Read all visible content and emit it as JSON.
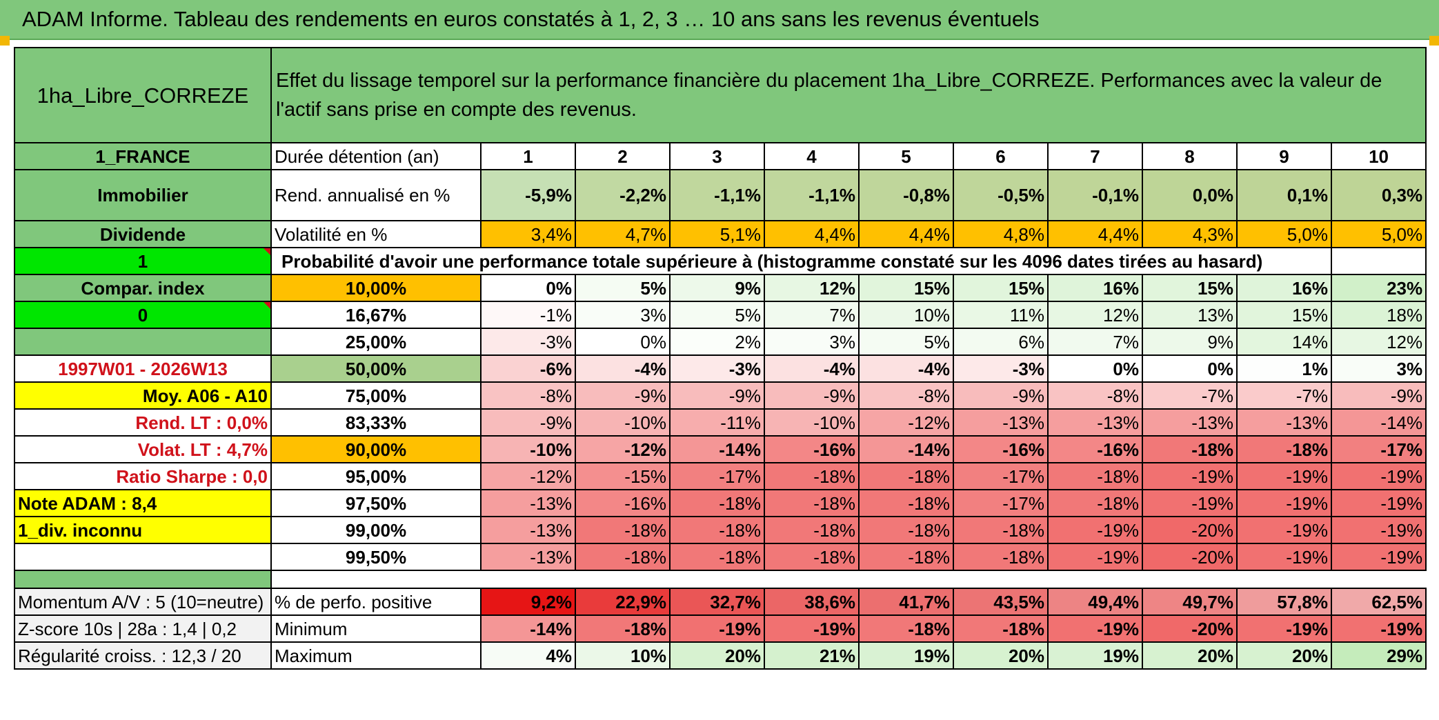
{
  "title": "ADAM Informe. Tableau des rendements en euros constatés à 1, 2, 3 … 10 ans sans les revenus éventuels",
  "asset_name": "1ha_Libre_CORREZE",
  "description": "Effet du lissage temporel sur la performance financière du placement 1ha_Libre_CORREZE. Performances avec la valeur de l'actif sans prise en compte des revenus.",
  "left_labels": {
    "country": "1_FRANCE",
    "category": "Immobilier",
    "dividend": "Dividende",
    "one": "1",
    "compar_index": "Compar. index",
    "zero": "0",
    "period": "1997W01 - 2026W13",
    "moyenne": "Moy. A06 - A10",
    "rend_lt": "Rend. LT :   0,0%",
    "volat_lt": "Volat. LT :   4,7%",
    "sharpe": "Ratio Sharpe :    0,0",
    "note": "Note ADAM : 8,4",
    "div_unknown": "1_div. inconnu"
  },
  "header_row": {
    "label": "Durée détention (an)",
    "years": [
      "1",
      "2",
      "3",
      "4",
      "5",
      "6",
      "7",
      "8",
      "9",
      "10"
    ]
  },
  "rend_row": {
    "label": "Rend. annualisé en %",
    "values": [
      "-5,9%",
      "-2,2%",
      "-1,1%",
      "-1,1%",
      "-0,8%",
      "-0,5%",
      "-0,1%",
      "0,0%",
      "0,1%",
      "0,3%"
    ]
  },
  "volat_row": {
    "label": "Volatilité en %",
    "values": [
      "3,4%",
      "4,7%",
      "5,1%",
      "4,4%",
      "4,4%",
      "4,8%",
      "4,4%",
      "4,3%",
      "5,0%",
      "5,0%"
    ]
  },
  "prob_header": "Probabilité d'avoir une performance totale supérieure à (histogramme constaté sur les 4096 dates tirées au hasard)",
  "quantiles": [
    {
      "label": "10,00%",
      "values": [
        "0%",
        "5%",
        "9%",
        "12%",
        "15%",
        "15%",
        "16%",
        "15%",
        "16%",
        "23%"
      ]
    },
    {
      "label": "16,67%",
      "values": [
        "-1%",
        "3%",
        "5%",
        "7%",
        "10%",
        "11%",
        "12%",
        "13%",
        "15%",
        "18%"
      ]
    },
    {
      "label": "25,00%",
      "values": [
        "-3%",
        "0%",
        "2%",
        "3%",
        "5%",
        "6%",
        "7%",
        "9%",
        "14%",
        "12%"
      ]
    },
    {
      "label": "50,00%",
      "values": [
        "-6%",
        "-4%",
        "-3%",
        "-4%",
        "-4%",
        "-3%",
        "0%",
        "0%",
        "1%",
        "3%"
      ]
    },
    {
      "label": "75,00%",
      "values": [
        "-8%",
        "-9%",
        "-9%",
        "-9%",
        "-8%",
        "-9%",
        "-8%",
        "-7%",
        "-7%",
        "-9%"
      ]
    },
    {
      "label": "83,33%",
      "values": [
        "-9%",
        "-10%",
        "-11%",
        "-10%",
        "-12%",
        "-13%",
        "-13%",
        "-13%",
        "-13%",
        "-14%"
      ]
    },
    {
      "label": "90,00%",
      "values": [
        "-10%",
        "-12%",
        "-14%",
        "-16%",
        "-14%",
        "-16%",
        "-16%",
        "-18%",
        "-18%",
        "-17%"
      ]
    },
    {
      "label": "95,00%",
      "values": [
        "-12%",
        "-15%",
        "-17%",
        "-18%",
        "-18%",
        "-17%",
        "-18%",
        "-19%",
        "-19%",
        "-19%"
      ]
    },
    {
      "label": "97,50%",
      "values": [
        "-13%",
        "-16%",
        "-18%",
        "-18%",
        "-18%",
        "-17%",
        "-18%",
        "-19%",
        "-19%",
        "-19%"
      ]
    },
    {
      "label": "99,00%",
      "values": [
        "-13%",
        "-18%",
        "-18%",
        "-18%",
        "-18%",
        "-18%",
        "-19%",
        "-20%",
        "-19%",
        "-19%"
      ]
    },
    {
      "label": "99,50%",
      "values": [
        "-13%",
        "-18%",
        "-18%",
        "-18%",
        "-18%",
        "-18%",
        "-19%",
        "-20%",
        "-19%",
        "-19%"
      ]
    }
  ],
  "bottom": {
    "momentum": "Momentum A/V : 5 (10=neutre)",
    "zscore": "Z-score 10s | 28a : 1,4 | 0,2",
    "regularite": "Régularité croiss. : 12,3 / 20",
    "positive_label": "% de perfo. positive",
    "positive_values": [
      "9,2%",
      "22,9%",
      "32,7%",
      "38,6%",
      "41,7%",
      "43,5%",
      "49,4%",
      "49,7%",
      "57,8%",
      "62,5%"
    ],
    "min_label": "Minimum",
    "min_values": [
      "-14%",
      "-18%",
      "-19%",
      "-19%",
      "-18%",
      "-18%",
      "-19%",
      "-20%",
      "-19%",
      "-19%"
    ],
    "max_label": "Maximum",
    "max_values": [
      "4%",
      "10%",
      "20%",
      "21%",
      "19%",
      "20%",
      "19%",
      "20%",
      "20%",
      "29%"
    ]
  },
  "colors": {
    "header_green": "#80c77c",
    "lime": "#00e600",
    "yellow": "#ffff00",
    "orange": "#ffc000",
    "label_red": "#d0121b"
  }
}
